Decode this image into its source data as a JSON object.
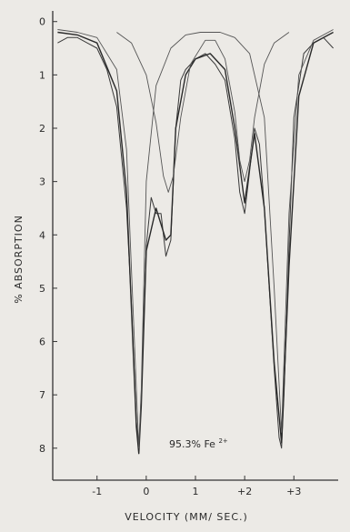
{
  "chart_data": {
    "type": "line",
    "xlabel": "VELOCITY  (MM/ SEC.)",
    "ylabel": "% ABSORPTION",
    "annotation": "95.3% Fe",
    "annotation_sup": "2+",
    "xlim": [
      -1.9,
      3.9
    ],
    "ylim": [
      8.6,
      -0.2
    ],
    "x_ticks": [
      -1,
      0,
      1,
      2,
      3
    ],
    "x_tick_labels": [
      "-1",
      "0",
      "1",
      "+2",
      "+3"
    ],
    "y_ticks": [
      0,
      1,
      2,
      3,
      4,
      5,
      6,
      7,
      8
    ],
    "y_tick_labels": [
      "0",
      "1",
      "2",
      "3",
      "4",
      "5",
      "6",
      "7",
      "8"
    ],
    "grid": false,
    "series": [
      {
        "values_kind": "measured spectrum (noisy)",
        "x": [
          -1.8,
          -1.6,
          -1.4,
          -1.2,
          -1.0,
          -0.8,
          -0.6,
          -0.4,
          -0.3,
          -0.2,
          -0.15,
          -0.1,
          0.0,
          0.1,
          0.2,
          0.3,
          0.4,
          0.5,
          0.6,
          0.7,
          0.8,
          1.0,
          1.2,
          1.4,
          1.6,
          1.8,
          1.9,
          2.0,
          2.1,
          2.2,
          2.3,
          2.4,
          2.5,
          2.6,
          2.7,
          2.75,
          2.8,
          2.9,
          3.0,
          3.2,
          3.4,
          3.6,
          3.8
        ],
        "values": [
          0.4,
          0.3,
          0.3,
          0.4,
          0.5,
          0.9,
          1.6,
          3.5,
          5.3,
          7.5,
          8.0,
          7.0,
          4.2,
          3.3,
          3.6,
          3.6,
          4.4,
          4.1,
          2.0,
          1.1,
          0.9,
          0.7,
          0.6,
          0.8,
          1.1,
          2.2,
          3.2,
          3.6,
          2.8,
          2.0,
          2.3,
          3.5,
          5.0,
          6.5,
          7.8,
          8.0,
          7.0,
          4.2,
          1.8,
          0.6,
          0.4,
          0.3,
          0.5
        ]
      },
      {
        "values_kind": "fitted envelope",
        "x": [
          -1.8,
          -1.4,
          -1.0,
          -0.6,
          -0.4,
          -0.2,
          -0.15,
          -0.1,
          0.0,
          0.2,
          0.4,
          0.5,
          0.6,
          0.8,
          1.0,
          1.3,
          1.6,
          1.8,
          2.0,
          2.2,
          2.4,
          2.6,
          2.75,
          2.9,
          3.1,
          3.4,
          3.8
        ],
        "values": [
          0.2,
          0.25,
          0.4,
          1.3,
          3.2,
          7.6,
          8.1,
          7.2,
          4.3,
          3.5,
          4.1,
          4.0,
          2.0,
          1.0,
          0.7,
          0.6,
          0.9,
          2.0,
          3.4,
          2.1,
          3.5,
          6.4,
          7.9,
          4.6,
          1.4,
          0.4,
          0.2
        ]
      },
      {
        "values_kind": "component doublet (outer)",
        "x": [
          -1.8,
          -1.4,
          -1.0,
          -0.6,
          -0.4,
          -0.2,
          -0.15,
          -0.1,
          0.0,
          0.2,
          0.5,
          0.8,
          1.1,
          1.3,
          1.5,
          1.8,
          2.1,
          2.4,
          2.6,
          2.75,
          2.9,
          3.1,
          3.4,
          3.8
        ],
        "values": [
          0.15,
          0.2,
          0.3,
          0.9,
          2.4,
          6.9,
          8.0,
          6.9,
          3.0,
          1.2,
          0.5,
          0.25,
          0.2,
          0.2,
          0.2,
          0.3,
          0.6,
          1.8,
          5.0,
          7.7,
          3.6,
          1.0,
          0.35,
          0.15
        ]
      },
      {
        "values_kind": "component doublet (inner)",
        "x": [
          -0.6,
          -0.3,
          0.0,
          0.2,
          0.35,
          0.45,
          0.55,
          0.7,
          0.9,
          1.2,
          1.4,
          1.6,
          1.8,
          1.9,
          2.0,
          2.1,
          2.2,
          2.4,
          2.6,
          2.9
        ],
        "values": [
          0.2,
          0.4,
          1.0,
          1.9,
          2.9,
          3.2,
          2.9,
          1.8,
          0.8,
          0.35,
          0.35,
          0.7,
          1.7,
          2.6,
          3.0,
          2.6,
          1.8,
          0.8,
          0.4,
          0.2
        ]
      }
    ]
  }
}
